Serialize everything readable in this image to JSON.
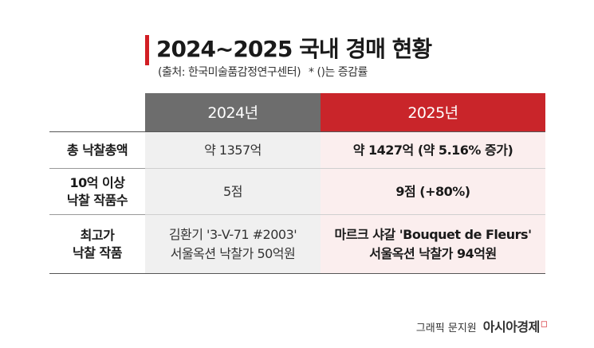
{
  "header": {
    "title": "2024~2025 국내 경매 현황",
    "source": "(출처: 한국미술품감정연구센터)",
    "note": "* ()는 증감률"
  },
  "table": {
    "columns": [
      "",
      "2024년",
      "2025년"
    ],
    "rows": [
      {
        "label": [
          "총 낙찰총액"
        ],
        "y2024": [
          "약 1357억"
        ],
        "y2025": [
          "약 1427억 (약 5.16% 증가)"
        ]
      },
      {
        "label": [
          "10억 이상",
          "낙찰 작품수"
        ],
        "y2024": [
          "5점"
        ],
        "y2025": [
          "9점 (+80%)"
        ]
      },
      {
        "label": [
          "최고가",
          "낙찰 작품"
        ],
        "y2024": [
          "김환기 '3-V-71 #2003'",
          "서울옥션 낙찰가 50억원"
        ],
        "y2025": [
          "마르크 샤갈 'Bouquet de Fleurs'",
          "서울옥션 낙찰가 94억원"
        ]
      }
    ]
  },
  "credit": {
    "label": "그래픽 문지원",
    "brand": "아시아경제"
  },
  "colors": {
    "accent_red": "#c9252a",
    "header_gray": "#6d6d6d",
    "cell_gray": "#f0f0f0",
    "cell_pink": "#fbeeee"
  }
}
